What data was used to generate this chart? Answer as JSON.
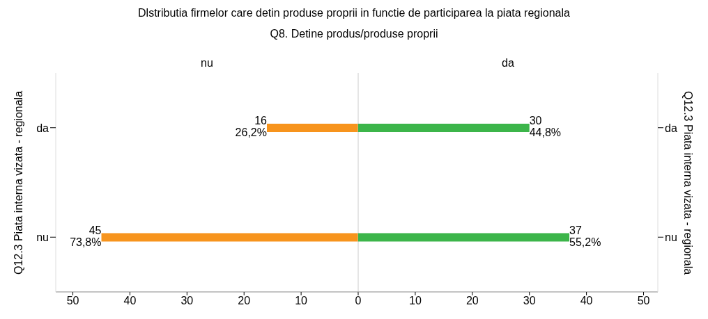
{
  "chart_data": [
    {
      "type": "bar",
      "orientation": "horizontal",
      "title": "Dlstributia firmelor care detin produse proprii in functie de participarea la piata regionala",
      "subtitle": "Q8. Detine produs/produse proprii",
      "ylabel": "Q12.3 Piata interna vizata - regionala",
      "categories": [
        "da",
        "nu"
      ],
      "series": [
        {
          "name": "nu",
          "color": "#f7941d",
          "values": [
            16,
            45
          ],
          "value_labels": [
            "16\n26,2%",
            "45\n73,8%"
          ]
        }
      ],
      "xlim": [
        53,
        0
      ],
      "xticks": [
        50,
        40,
        30,
        20,
        10,
        0
      ],
      "ref_lines": [
        {
          "axis": "x",
          "value": 0,
          "color": "#cccccc"
        }
      ],
      "grid": false,
      "legend": false
    },
    {
      "type": "bar",
      "orientation": "horizontal",
      "y2label": "Q12.3 Piata interna vizata - regionala",
      "categories": [
        "da",
        "nu"
      ],
      "series": [
        {
          "name": "da",
          "color": "#3cb54a",
          "values": [
            30,
            37
          ],
          "value_labels": [
            "30\n44,8%",
            "37\n55,2%"
          ]
        }
      ],
      "xlim": [
        0,
        52.5
      ],
      "xticks": [
        10,
        20,
        30,
        40,
        50
      ],
      "grid": false,
      "legend": false
    }
  ]
}
